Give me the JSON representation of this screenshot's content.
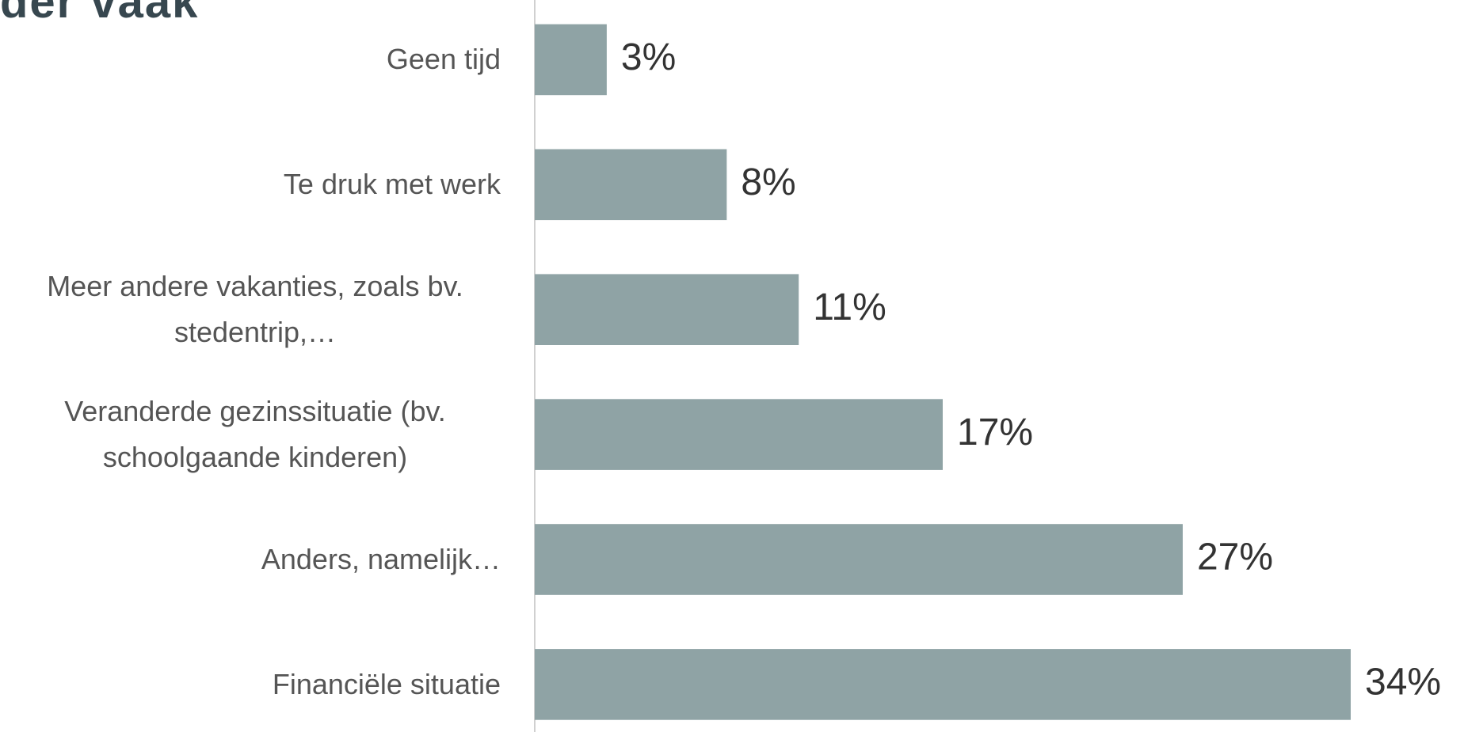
{
  "chart_data": {
    "type": "barh",
    "title": "der vaak",
    "categories": [
      "Geen tijd",
      "Te druk met werk",
      "Meer andere vakanties, zoals bv. stedentrip,…",
      "Veranderde gezinssituatie (bv. schoolgaande kinderen)",
      "Anders, namelijk…",
      "Financiële situatie"
    ],
    "values": [
      3,
      8,
      11,
      17,
      27,
      34
    ],
    "value_labels": [
      "3%",
      "8%",
      "11%",
      "17%",
      "27%",
      "34%"
    ],
    "color": "#8fa3a5",
    "xlim": [
      0,
      34
    ]
  }
}
